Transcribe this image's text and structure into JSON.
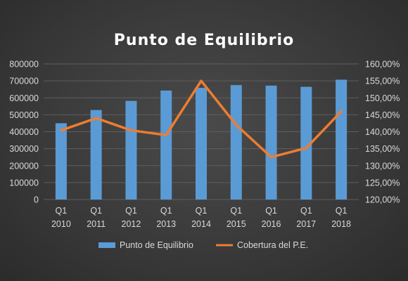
{
  "chart_data": {
    "type": "bar+line",
    "title": "Punto de Equilibrio",
    "categories": [
      [
        "Q1",
        "2010"
      ],
      [
        "Q1",
        "2011"
      ],
      [
        "Q1",
        "2012"
      ],
      [
        "Q1",
        "2013"
      ],
      [
        "Q1",
        "2014"
      ],
      [
        "Q1",
        "2015"
      ],
      [
        "Q1",
        "2016"
      ],
      [
        "Q1",
        "2017"
      ],
      [
        "Q1",
        "2018"
      ]
    ],
    "series": [
      {
        "name": "Punto de Equilibrio",
        "type": "bar",
        "axis": "left",
        "color": "#5b9bd5",
        "values": [
          450000,
          528000,
          582000,
          643000,
          659000,
          675000,
          672000,
          665000,
          707000
        ]
      },
      {
        "name": "Cobertura del P.E.",
        "type": "line",
        "axis": "right",
        "color": "#ed7d31",
        "values": [
          140.4,
          144.0,
          140.4,
          139.0,
          155.0,
          142.0,
          132.5,
          135.2,
          146.0
        ]
      }
    ],
    "y_left": {
      "lim": [
        0,
        800000
      ],
      "ticks": [
        "0",
        "100000",
        "200000",
        "300000",
        "400000",
        "500000",
        "600000",
        "700000",
        "800000"
      ]
    },
    "y_right": {
      "lim": [
        120,
        160
      ],
      "ticks": [
        "120,00%",
        "125,00%",
        "130,00%",
        "135,00%",
        "140,00%",
        "145,00%",
        "150,00%",
        "155,00%",
        "160,00%"
      ]
    },
    "grid": true,
    "legend": "bottom"
  }
}
